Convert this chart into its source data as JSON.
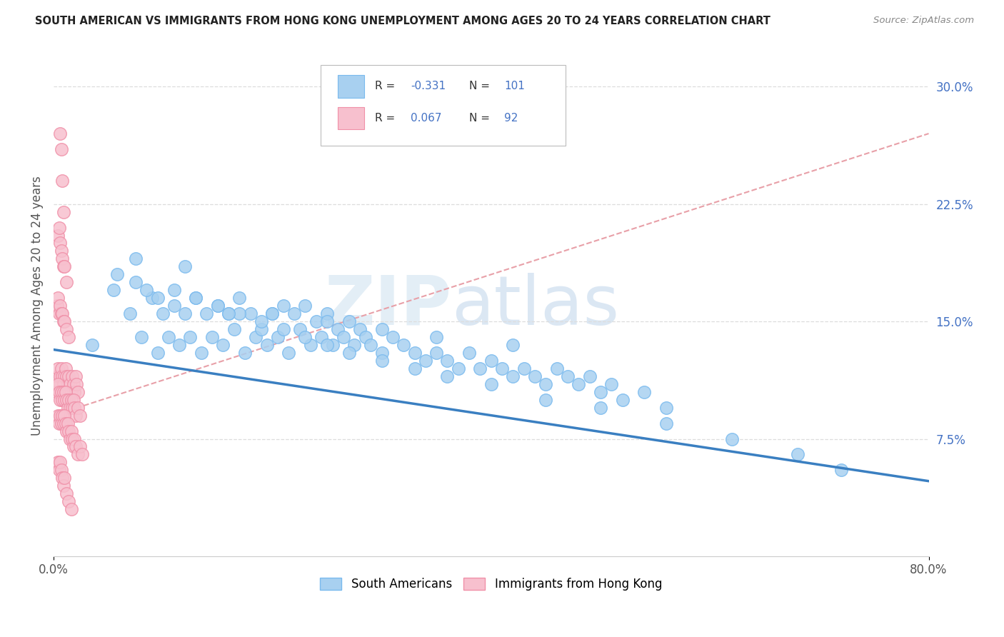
{
  "title": "SOUTH AMERICAN VS IMMIGRANTS FROM HONG KONG UNEMPLOYMENT AMONG AGES 20 TO 24 YEARS CORRELATION CHART",
  "source": "Source: ZipAtlas.com",
  "ylabel": "Unemployment Among Ages 20 to 24 years",
  "xlim": [
    0.0,
    0.8
  ],
  "ylim": [
    0.0,
    0.32
  ],
  "blue_color": "#a8d0f0",
  "blue_edge": "#7abaee",
  "pink_color": "#f7c0ce",
  "pink_edge": "#f090a8",
  "line_blue": "#3a7fc1",
  "line_pink": "#e8a0a8",
  "watermark_zip": "#c8e0f0",
  "watermark_atlas": "#b8cfe0",
  "blue_trend_x": [
    0.0,
    0.8
  ],
  "blue_trend_y": [
    0.132,
    0.048
  ],
  "pink_trend_x": [
    0.0,
    0.8
  ],
  "pink_trend_y": [
    0.09,
    0.27
  ],
  "grid_color": "#dddddd",
  "ytick_right_vals": [
    0.075,
    0.15,
    0.225,
    0.3
  ],
  "ytick_right_labels": [
    "7.5%",
    "15.0%",
    "22.5%",
    "30.0%"
  ],
  "blue_x": [
    0.035,
    0.055,
    0.07,
    0.08,
    0.09,
    0.095,
    0.1,
    0.105,
    0.11,
    0.115,
    0.12,
    0.125,
    0.13,
    0.135,
    0.14,
    0.145,
    0.15,
    0.155,
    0.16,
    0.165,
    0.17,
    0.175,
    0.18,
    0.185,
    0.19,
    0.195,
    0.2,
    0.205,
    0.21,
    0.215,
    0.22,
    0.225,
    0.23,
    0.235,
    0.24,
    0.245,
    0.25,
    0.255,
    0.26,
    0.265,
    0.27,
    0.275,
    0.28,
    0.285,
    0.29,
    0.3,
    0.31,
    0.32,
    0.33,
    0.34,
    0.35,
    0.36,
    0.37,
    0.38,
    0.39,
    0.4,
    0.41,
    0.42,
    0.43,
    0.44,
    0.45,
    0.46,
    0.47,
    0.48,
    0.49,
    0.5,
    0.51,
    0.52,
    0.54,
    0.56,
    0.058,
    0.075,
    0.085,
    0.095,
    0.11,
    0.13,
    0.15,
    0.17,
    0.19,
    0.21,
    0.23,
    0.25,
    0.27,
    0.3,
    0.33,
    0.36,
    0.4,
    0.45,
    0.5,
    0.56,
    0.62,
    0.68,
    0.72,
    0.075,
    0.12,
    0.16,
    0.2,
    0.25,
    0.3,
    0.35,
    0.42
  ],
  "blue_y": [
    0.135,
    0.17,
    0.155,
    0.14,
    0.165,
    0.13,
    0.155,
    0.14,
    0.16,
    0.135,
    0.155,
    0.14,
    0.165,
    0.13,
    0.155,
    0.14,
    0.16,
    0.135,
    0.155,
    0.145,
    0.165,
    0.13,
    0.155,
    0.14,
    0.145,
    0.135,
    0.155,
    0.14,
    0.16,
    0.13,
    0.155,
    0.145,
    0.16,
    0.135,
    0.15,
    0.14,
    0.155,
    0.135,
    0.145,
    0.14,
    0.15,
    0.135,
    0.145,
    0.14,
    0.135,
    0.13,
    0.14,
    0.135,
    0.13,
    0.125,
    0.13,
    0.125,
    0.12,
    0.13,
    0.12,
    0.125,
    0.12,
    0.115,
    0.12,
    0.115,
    0.11,
    0.12,
    0.115,
    0.11,
    0.115,
    0.105,
    0.11,
    0.1,
    0.105,
    0.095,
    0.18,
    0.175,
    0.17,
    0.165,
    0.17,
    0.165,
    0.16,
    0.155,
    0.15,
    0.145,
    0.14,
    0.135,
    0.13,
    0.125,
    0.12,
    0.115,
    0.11,
    0.1,
    0.095,
    0.085,
    0.075,
    0.065,
    0.055,
    0.19,
    0.185,
    0.155,
    0.155,
    0.15,
    0.145,
    0.14,
    0.135
  ],
  "pink_x": [
    0.003,
    0.004,
    0.005,
    0.006,
    0.007,
    0.008,
    0.009,
    0.01,
    0.011,
    0.012,
    0.013,
    0.014,
    0.015,
    0.016,
    0.017,
    0.018,
    0.019,
    0.02,
    0.021,
    0.022,
    0.003,
    0.004,
    0.005,
    0.006,
    0.007,
    0.008,
    0.009,
    0.01,
    0.011,
    0.012,
    0.013,
    0.014,
    0.015,
    0.016,
    0.017,
    0.018,
    0.019,
    0.02,
    0.022,
    0.024,
    0.004,
    0.005,
    0.006,
    0.007,
    0.008,
    0.009,
    0.01,
    0.011,
    0.012,
    0.013,
    0.014,
    0.015,
    0.016,
    0.017,
    0.018,
    0.019,
    0.02,
    0.022,
    0.024,
    0.026,
    0.004,
    0.005,
    0.006,
    0.007,
    0.008,
    0.009,
    0.01,
    0.012,
    0.014,
    0.016,
    0.003,
    0.004,
    0.005,
    0.006,
    0.007,
    0.008,
    0.009,
    0.01,
    0.012,
    0.014,
    0.004,
    0.005,
    0.006,
    0.007,
    0.008,
    0.009,
    0.01,
    0.012,
    0.006,
    0.007,
    0.008,
    0.009
  ],
  "pink_y": [
    0.115,
    0.12,
    0.11,
    0.115,
    0.12,
    0.115,
    0.11,
    0.115,
    0.12,
    0.115,
    0.11,
    0.115,
    0.11,
    0.105,
    0.115,
    0.11,
    0.105,
    0.115,
    0.11,
    0.105,
    0.105,
    0.11,
    0.105,
    0.1,
    0.105,
    0.1,
    0.105,
    0.1,
    0.105,
    0.1,
    0.095,
    0.1,
    0.095,
    0.1,
    0.095,
    0.1,
    0.095,
    0.09,
    0.095,
    0.09,
    0.09,
    0.085,
    0.09,
    0.085,
    0.09,
    0.085,
    0.09,
    0.085,
    0.08,
    0.085,
    0.08,
    0.075,
    0.08,
    0.075,
    0.07,
    0.075,
    0.07,
    0.065,
    0.07,
    0.065,
    0.06,
    0.055,
    0.06,
    0.055,
    0.05,
    0.045,
    0.05,
    0.04,
    0.035,
    0.03,
    0.16,
    0.165,
    0.155,
    0.16,
    0.155,
    0.155,
    0.15,
    0.15,
    0.145,
    0.14,
    0.205,
    0.21,
    0.2,
    0.195,
    0.19,
    0.185,
    0.185,
    0.175,
    0.27,
    0.26,
    0.24,
    0.22
  ]
}
